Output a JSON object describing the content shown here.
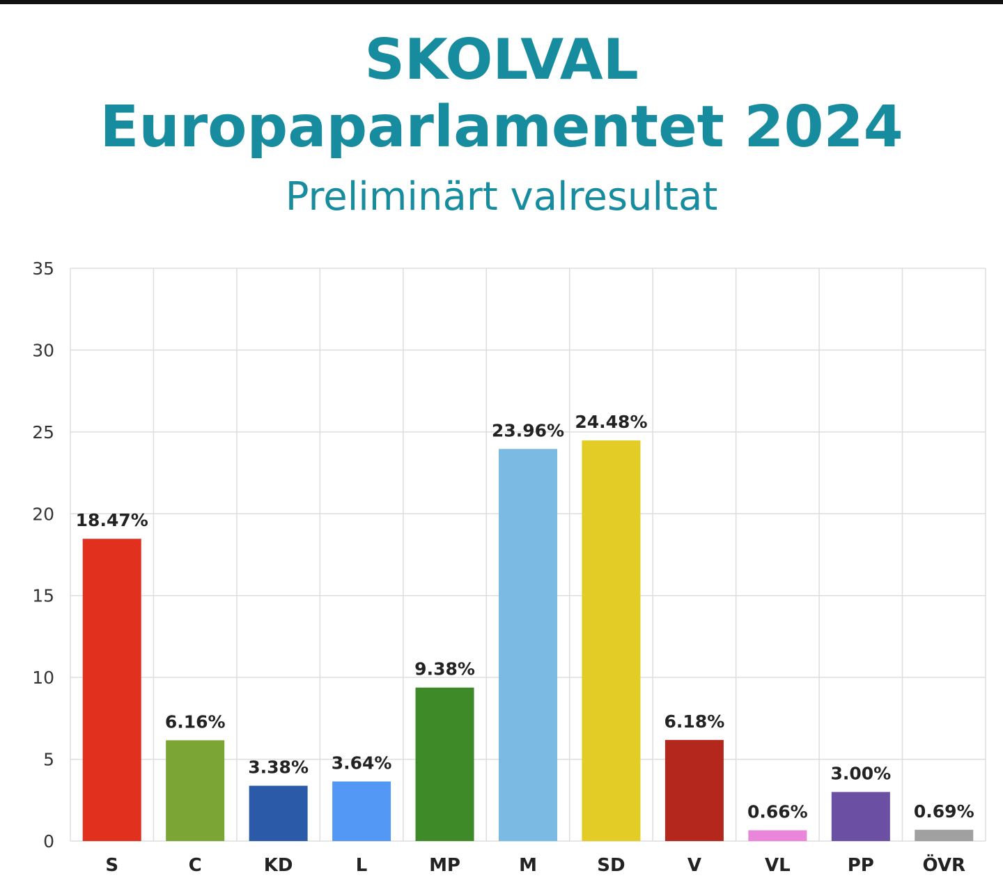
{
  "header": {
    "title_line1": "SKOLVAL",
    "title_line2": "Europaparlamentet 2024",
    "subtitle": "Preliminärt valresultat"
  },
  "colors": {
    "title": "#168c9e",
    "grid": "#dddddd"
  },
  "chart_data": {
    "type": "bar",
    "categories": [
      "S",
      "C",
      "KD",
      "L",
      "MP",
      "M",
      "SD",
      "V",
      "VL",
      "PP",
      "ÖVR"
    ],
    "values": [
      18.47,
      6.16,
      3.38,
      3.64,
      9.38,
      23.96,
      24.48,
      6.18,
      0.66,
      3.0,
      0.69
    ],
    "value_labels": [
      "18.47%",
      "6.16%",
      "3.38%",
      "3.64%",
      "9.38%",
      "23.96%",
      "24.48%",
      "6.18%",
      "0.66%",
      "3.00%",
      "0.69%"
    ],
    "colors": [
      "#e2301f",
      "#7ba534",
      "#2b5ba8",
      "#5398f5",
      "#3f8a28",
      "#7bbae2",
      "#e4cc26",
      "#b3271d",
      "#ea86d9",
      "#6a4fa3",
      "#a0a0a0"
    ],
    "title": "SKOLVAL Europaparlamentet 2024",
    "subtitle": "Preliminärt valresultat",
    "xlabel": "",
    "ylabel": "",
    "ylim": [
      0,
      35
    ],
    "yticks": [
      0,
      5,
      10,
      15,
      20,
      25,
      30,
      35
    ],
    "grid": true,
    "legend": "none"
  }
}
